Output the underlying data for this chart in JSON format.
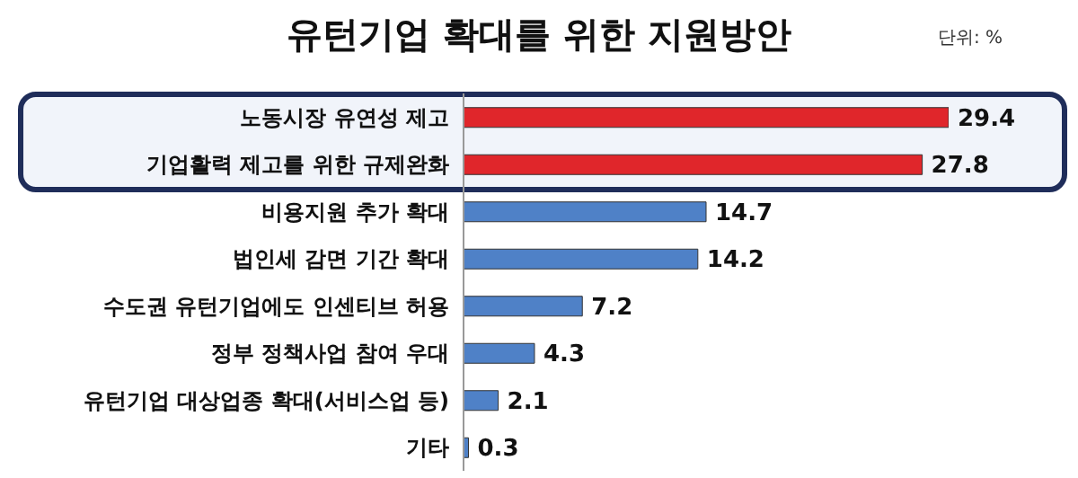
{
  "chart_data": {
    "type": "bar",
    "orientation": "horizontal",
    "title": "유턴기업 확대를 위한 지원방안",
    "annotations": [
      "단위: %"
    ],
    "categories": [
      "노동시장 유연성 제고",
      "기업활력 제고를 위한 규제완화",
      "비용지원 추가 확대",
      "법인세 감면 기간 확대",
      "수도권 유턴기업에도 인센티브 허용",
      "정부 정책사업 참여 우대",
      "유턴기업 대상업종 확대(서비스업 등)",
      "기타"
    ],
    "values": [
      29.4,
      27.8,
      14.7,
      14.2,
      7.2,
      4.3,
      2.1,
      0.3
    ],
    "colors": [
      "#e0262b",
      "#e0262b",
      "#4f81c7",
      "#4f81c7",
      "#4f81c7",
      "#4f81c7",
      "#4f81c7",
      "#4f81c7"
    ],
    "data_labels": true
  }
}
